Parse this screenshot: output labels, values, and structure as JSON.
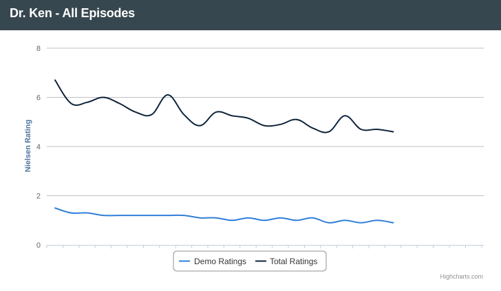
{
  "header": {
    "title": "Dr. Ken - All Episodes"
  },
  "credits": "Highcharts.com",
  "chart_data": {
    "type": "line",
    "title": "Dr. Ken - All Episodes",
    "ylabel": "Nielsen Rating",
    "xlabel": "",
    "ylim": [
      0,
      8
    ],
    "yticks": [
      "0",
      "2",
      "4",
      "6",
      "8"
    ],
    "grid": true,
    "legend_position": "bottom-center",
    "x": [
      1,
      2,
      3,
      4,
      5,
      6,
      7,
      8,
      9,
      10,
      11,
      12,
      13,
      14,
      15,
      16,
      17,
      18,
      19,
      20,
      21,
      22
    ],
    "series": [
      {
        "name": "Demo Ratings",
        "color": "#2f7ed8",
        "values": [
          1.5,
          1.3,
          1.3,
          1.2,
          1.2,
          1.2,
          1.2,
          1.2,
          1.2,
          1.1,
          1.1,
          1.0,
          1.1,
          1.0,
          1.1,
          1.0,
          1.1,
          0.9,
          1.0,
          0.9,
          1.0,
          0.9
        ]
      },
      {
        "name": "Total Ratings",
        "color": "#0d233a",
        "values": [
          6.7,
          5.75,
          5.8,
          6.0,
          5.75,
          5.4,
          5.3,
          6.1,
          5.3,
          4.85,
          5.4,
          5.25,
          5.15,
          4.85,
          4.9,
          5.1,
          4.75,
          4.6,
          5.25,
          4.7,
          4.7,
          4.6
        ]
      }
    ]
  }
}
